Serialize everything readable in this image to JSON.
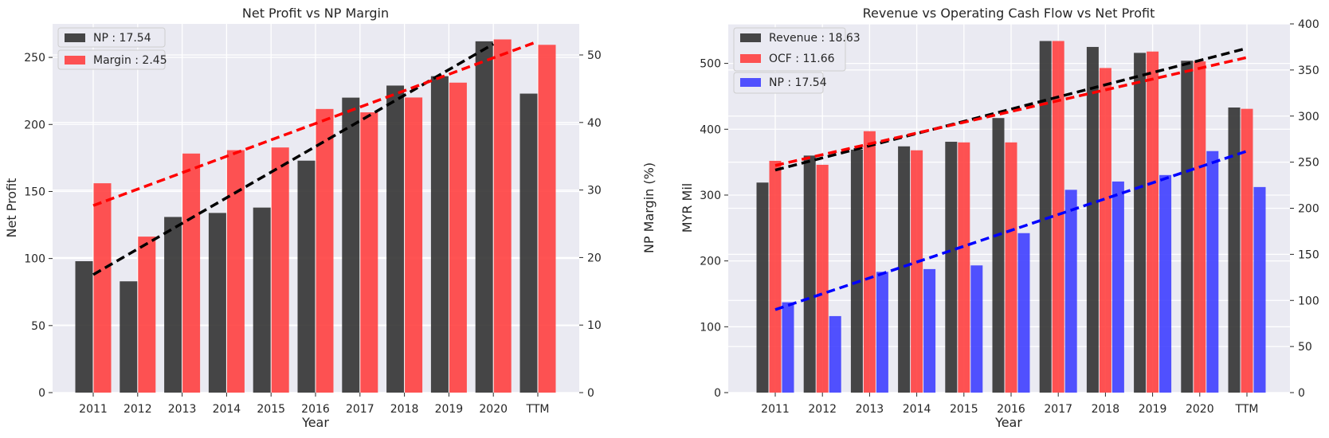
{
  "colors": {
    "black_bar": "#2e2e2e",
    "red_bar": "#ff3b3b",
    "blue_bar": "#3a3aff",
    "black_trend": "#000000",
    "red_trend": "#ff0000",
    "blue_trend": "#0000ff"
  },
  "chart_data": [
    {
      "type": "bar",
      "title": "Net Profit vs NP Margin",
      "xlabel": "Year",
      "ylabel": "Net Profit",
      "y2label": "NP Margin (%)",
      "categories": [
        "2011",
        "2012",
        "2013",
        "2014",
        "2015",
        "2016",
        "2017",
        "2018",
        "2019",
        "2020",
        "TTM"
      ],
      "ylim": [
        0,
        275
      ],
      "y2lim": [
        0,
        54.6
      ],
      "yticks": [
        0,
        50,
        100,
        150,
        200,
        250
      ],
      "y2ticks": [
        0,
        10,
        20,
        30,
        40,
        50
      ],
      "grid": true,
      "legend_position": "top-left",
      "series": [
        {
          "name": "NP : 17.54",
          "axis": "left",
          "color": "black_bar",
          "values": [
            98,
            83,
            131,
            134,
            138,
            173,
            220,
            229,
            236,
            262,
            223
          ],
          "trend": {
            "from": "2011",
            "to": "2020",
            "start": 88,
            "end": 260,
            "color": "black_trend"
          }
        },
        {
          "name": "Margin : 2.45",
          "axis": "right",
          "color": "red_bar",
          "values": [
            31,
            23.1,
            35.4,
            35.9,
            36.3,
            42,
            41.5,
            43.7,
            45.9,
            52.3,
            51.5
          ],
          "trend": {
            "from": "2011",
            "to": "TTM",
            "start": 27.7,
            "end": 52,
            "color": "red_trend"
          }
        }
      ]
    },
    {
      "type": "bar",
      "title": "Revenue vs Operating Cash Flow vs Net Profit",
      "xlabel": "Year",
      "ylabel": "MYR Mil",
      "categories": [
        "2011",
        "2012",
        "2013",
        "2014",
        "2015",
        "2016",
        "2017",
        "2018",
        "2019",
        "2020",
        "TTM"
      ],
      "ylim": [
        0,
        560
      ],
      "y2lim": [
        0,
        400
      ],
      "yticks": [
        0,
        100,
        200,
        300,
        400,
        500
      ],
      "y2ticks": [
        0,
        50,
        100,
        150,
        200,
        250,
        300,
        350,
        400
      ],
      "grid": true,
      "legend_position": "top-left",
      "series": [
        {
          "name": "Revenue : 18.63",
          "axis": "left",
          "color": "black_bar",
          "values": [
            319,
            360,
            369,
            374,
            381,
            417,
            534,
            525,
            516,
            504,
            433
          ],
          "trend": {
            "from": "2011",
            "to": "TTM",
            "start": 338,
            "end": 523,
            "color": "black_trend"
          }
        },
        {
          "name": "OCF : 11.66",
          "axis": "left",
          "color": "red_bar",
          "values": [
            352,
            346,
            397,
            368,
            380,
            380,
            534,
            493,
            518,
            503,
            431
          ],
          "trend": {
            "from": "2011",
            "to": "TTM",
            "start": 345,
            "end": 509,
            "color": "red_trend"
          }
        },
        {
          "name": "NP : 17.54",
          "axis": "right",
          "color": "blue_bar",
          "values": [
            98,
            83,
            131,
            134,
            138,
            173,
            220,
            229,
            236,
            262,
            223
          ],
          "trend": {
            "from": "2011",
            "to": "TTM",
            "start": 90,
            "end": 262,
            "color": "blue_trend"
          }
        }
      ]
    }
  ]
}
